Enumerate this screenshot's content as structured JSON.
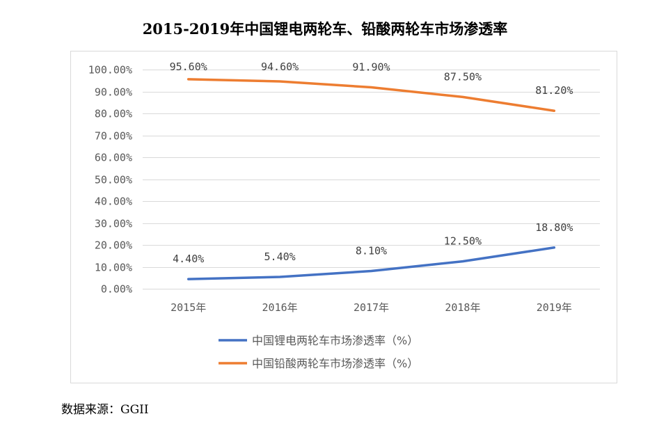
{
  "title": "2015-2019年中国锂电两轮车、铅酸两轮车市场渗透率",
  "source": "数据来源：GGII",
  "chart_data": {
    "type": "line",
    "title": "2015-2019年中国锂电两轮车、铅酸两轮车市场渗透率",
    "categories": [
      "2015年",
      "2016年",
      "2017年",
      "2018年",
      "2019年"
    ],
    "yticks": [
      "0.00%",
      "10.00%",
      "20.00%",
      "30.00%",
      "40.00%",
      "50.00%",
      "60.00%",
      "70.00%",
      "80.00%",
      "90.00%",
      "100.00%"
    ],
    "ylim": [
      0,
      100
    ],
    "grid": true,
    "legend": "bottom",
    "series": [
      {
        "name": "中国锂电两轮车市场渗透率（%）",
        "color": "#4472C4",
        "values": [
          4.4,
          5.4,
          8.1,
          12.5,
          18.8
        ],
        "labels": [
          "4.40%",
          "5.40%",
          "8.10%",
          "12.50%",
          "18.80%"
        ]
      },
      {
        "name": "中国铅酸两轮车市场渗透率（%）",
        "color": "#ED7D31",
        "values": [
          95.6,
          94.6,
          91.9,
          87.5,
          81.2
        ],
        "labels": [
          "95.60%",
          "94.60%",
          "91.90%",
          "87.50%",
          "81.20%"
        ]
      }
    ]
  }
}
